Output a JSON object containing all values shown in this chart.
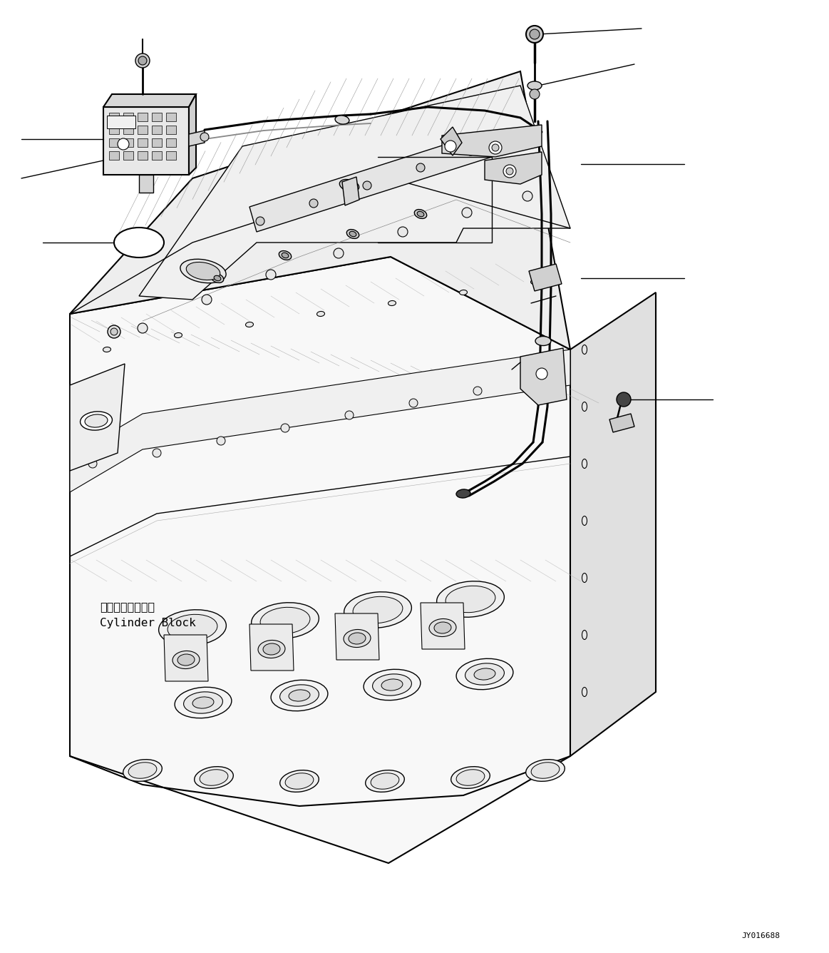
{
  "background_color": "#ffffff",
  "image_code": "JY016688",
  "label_cylinder_block_jp": "シリンダブロック",
  "label_cylinder_block_en": "Cylinder Block",
  "figsize": [
    11.63,
    13.36
  ],
  "dpi": 100,
  "lc": "black",
  "lw_thick": 1.5,
  "lw_med": 1.0,
  "lw_thin": 0.6,
  "lw_pipe": 2.2
}
